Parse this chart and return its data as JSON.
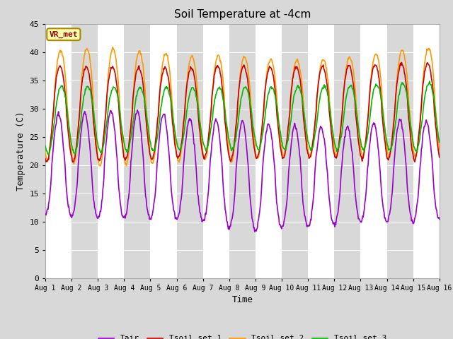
{
  "title": "Soil Temperature at -4cm",
  "xlabel": "Time",
  "ylabel": "Temperature (C)",
  "ylim": [
    0,
    45
  ],
  "yticks": [
    0,
    5,
    10,
    15,
    20,
    25,
    30,
    35,
    40,
    45
  ],
  "num_days": 15,
  "points_per_day": 48,
  "annotation_text": "VR_met",
  "line_colors": {
    "Tair": "#9900cc",
    "Tsoil_set1": "#cc0000",
    "Tsoil_set2": "#ff9900",
    "Tsoil_set3": "#00bb00"
  },
  "legend_labels": [
    "Tair",
    "Tsoil set 1",
    "Tsoil set 2",
    "Tsoil set 3"
  ],
  "bg_gray": "#d8d8d8",
  "bg_white": "#f0f0f0",
  "below_data_color": "#d0d0d0",
  "line_width": 1.2,
  "figsize": [
    6.4,
    4.8
  ],
  "dpi": 100
}
